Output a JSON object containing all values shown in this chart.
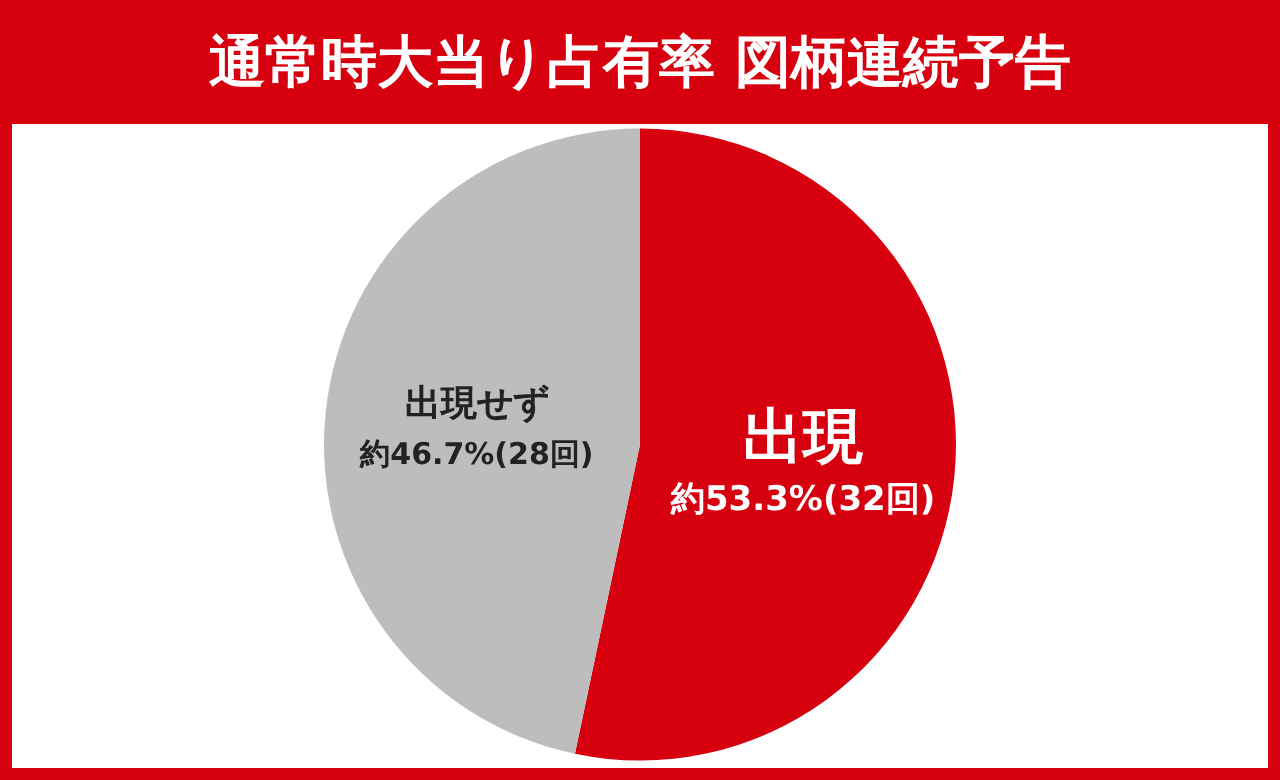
{
  "chart_data": {
    "type": "pie",
    "title": "通常時大当り占有率 図柄連続予告",
    "categories": [
      "出現",
      "出現せず"
    ],
    "values": [
      53.3,
      46.7
    ],
    "colors": [
      "#d7000f",
      "#bdbdbd"
    ],
    "value_labels": [
      "約53.3%(32回)",
      "約46.7%(28回)"
    ],
    "legend": false
  }
}
